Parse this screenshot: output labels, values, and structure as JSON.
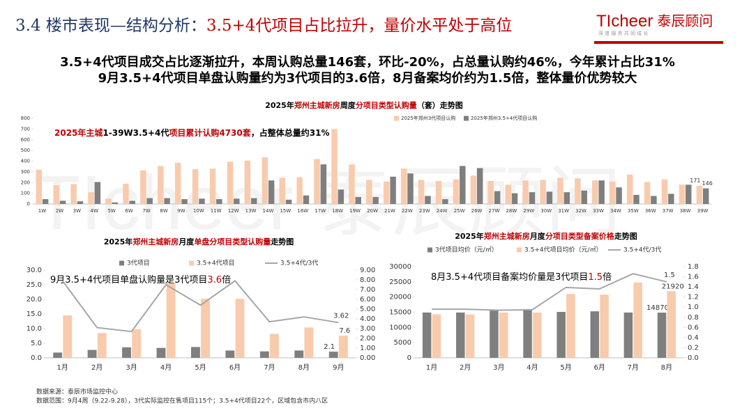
{
  "header": {
    "title": [
      {
        "text": "3.4 楼市表现—结构分析：",
        "color": "#1f3864"
      },
      {
        "text": "3.5+4代项目占比拉升，量价水平处于高位",
        "color": "#c00000"
      }
    ],
    "logo": "TIcheer",
    "logo_cn": "泰辰顾问",
    "slogan": "深 度 服 务 共 同 成 长"
  },
  "headline": [
    "3.5+4代项目成交占比逐渐拉升，本周认购总量146套，环比-20%，占总量认购约46%，今年累计占比31%",
    "9月3.5+4代项目单盘认购量约为3代项目的3.6倍，8月备案均价约为1.5倍，整体量价优势较大"
  ],
  "chart_data": [
    {
      "type": "bar",
      "title": [
        {
          "text": "2025年",
          "color": "#000000"
        },
        {
          "text": "郑州主城新房",
          "color": "#c00000"
        },
        {
          "text": "周度",
          "color": "#000000"
        },
        {
          "text": "分项目类型认购量",
          "color": "#c00000"
        },
        {
          "text": "（套）走势图",
          "color": "#000000"
        }
      ],
      "annotation": [
        {
          "text": "2025年主城",
          "color": "#c00000"
        },
        {
          "text": "1-39W3.5+4代",
          "color": "#000000"
        },
        {
          "text": "项目累计认购4730套",
          "color": "#c00000"
        },
        {
          "text": "，占整体总量约31%",
          "color": "#000000"
        }
      ],
      "categories": [
        "1W",
        "2W",
        "3W",
        "4W",
        "5W",
        "6W",
        "7W",
        "8W",
        "9W",
        "10W",
        "11W",
        "12W",
        "13W",
        "14W",
        "15W",
        "16W",
        "17W",
        "18W",
        "19W",
        "20W",
        "21W",
        "22W",
        "23W",
        "24W",
        "25W",
        "26W",
        "27W",
        "28W",
        "29W",
        "30W",
        "31W",
        "32W",
        "33W",
        "34W",
        "35W",
        "36W",
        "37W",
        "38W",
        "39W"
      ],
      "series": [
        {
          "name": "2025年郑州3代项目认购",
          "color": "#f8cbad",
          "type": "bar",
          "values": [
            320,
            175,
            185,
            110,
            50,
            190,
            315,
            355,
            385,
            325,
            330,
            395,
            405,
            435,
            245,
            250,
            420,
            700,
            370,
            225,
            210,
            330,
            225,
            215,
            230,
            265,
            215,
            180,
            220,
            225,
            245,
            240,
            220,
            210,
            275,
            205,
            230,
            180,
            171
          ],
          "value_labels": [
            null,
            null,
            null,
            null,
            null,
            null,
            null,
            null,
            null,
            null,
            null,
            null,
            null,
            null,
            null,
            null,
            null,
            null,
            null,
            null,
            null,
            null,
            null,
            null,
            null,
            null,
            null,
            null,
            null,
            null,
            null,
            null,
            null,
            null,
            null,
            null,
            null,
            null,
            "171"
          ]
        },
        {
          "name": "2025年郑州3.5+4代项目认购",
          "color": "#7f7f7f",
          "type": "bar",
          "values": [
            45,
            30,
            25,
            205,
            15,
            30,
            55,
            55,
            45,
            50,
            45,
            50,
            55,
            220,
            40,
            80,
            370,
            135,
            65,
            65,
            255,
            285,
            75,
            45,
            355,
            335,
            120,
            100,
            110,
            115,
            110,
            125,
            220,
            155,
            85,
            75,
            95,
            180,
            146
          ],
          "value_labels": [
            null,
            null,
            null,
            null,
            null,
            null,
            null,
            null,
            null,
            null,
            null,
            null,
            null,
            null,
            null,
            null,
            null,
            null,
            null,
            null,
            null,
            null,
            null,
            null,
            null,
            null,
            null,
            null,
            null,
            null,
            null,
            null,
            null,
            null,
            null,
            null,
            null,
            null,
            "146"
          ]
        }
      ],
      "ylim": [
        0,
        800
      ],
      "yticks": [
        0,
        100,
        200,
        300,
        400,
        500,
        600,
        700,
        800
      ],
      "grid": false
    },
    {
      "type": "combo",
      "title": [
        {
          "text": "2025年",
          "color": "#000000"
        },
        {
          "text": "郑州主城新房",
          "color": "#c00000"
        },
        {
          "text": "月度",
          "color": "#000000"
        },
        {
          "text": "单盘分项目类型认购量",
          "color": "#c00000"
        },
        {
          "text": "走势图",
          "color": "#000000"
        }
      ],
      "annotation": [
        {
          "text": "9月3.5+4代项目单盘认购量是3代项目",
          "color": "#000000"
        },
        {
          "text": "3.6",
          "color": "#c00000"
        },
        {
          "text": "倍",
          "color": "#000000"
        }
      ],
      "categories": [
        "1月",
        "2月",
        "3月",
        "4月",
        "5月",
        "6月",
        "7月",
        "8月",
        "9月"
      ],
      "series": [
        {
          "name": "3代项目",
          "color": "#7f7f7f",
          "type": "bar",
          "values": [
            1.8,
            2.7,
            3.6,
            3.4,
            3.7,
            2.5,
            2.2,
            2.5,
            2.1
          ],
          "value_labels": [
            null,
            null,
            null,
            null,
            null,
            null,
            null,
            null,
            "2.1"
          ]
        },
        {
          "name": "3.5+4代项目",
          "color": "#f8cbad",
          "type": "bar",
          "values": [
            14.5,
            8.5,
            9.8,
            25.5,
            20.2,
            20.2,
            8.2,
            10.4,
            7.6
          ],
          "value_labels": [
            null,
            null,
            null,
            null,
            null,
            null,
            null,
            null,
            "7.6"
          ]
        },
        {
          "name": "3.5+4代/3代",
          "color": "#a6a6a6",
          "type": "line",
          "axis": "y2",
          "values": [
            7.9,
            3.1,
            2.7,
            7.5,
            5.4,
            7.9,
            3.7,
            4.2,
            3.62
          ],
          "value_labels": [
            null,
            null,
            null,
            null,
            null,
            null,
            null,
            null,
            "3.62"
          ]
        }
      ],
      "ylim": [
        0,
        30
      ],
      "yticks": [
        {
          "value": 0,
          "label": "0.0"
        },
        {
          "value": 5,
          "label": "5.0"
        },
        {
          "value": 10,
          "label": "10.0"
        },
        {
          "value": 15,
          "label": "15.0"
        },
        {
          "value": 20,
          "label": "20.0"
        },
        {
          "value": 25,
          "label": "25.0"
        },
        {
          "value": 30,
          "label": "30.0"
        }
      ],
      "y2lim": [
        0,
        9
      ],
      "y2ticks": [
        {
          "value": 0,
          "label": "0.00"
        },
        {
          "value": 1,
          "label": "1.00"
        },
        {
          "value": 2,
          "label": "2.00"
        },
        {
          "value": 3,
          "label": "3.00"
        },
        {
          "value": 4,
          "label": "4.00"
        },
        {
          "value": 5,
          "label": "5.00"
        },
        {
          "value": 6,
          "label": "6.00"
        },
        {
          "value": 7,
          "label": "7.00"
        },
        {
          "value": 8,
          "label": "8.00"
        },
        {
          "value": 9,
          "label": "9.00"
        }
      ],
      "grid": false
    },
    {
      "type": "combo",
      "title": [
        {
          "text": "2025年",
          "color": "#000000"
        },
        {
          "text": "郑州主城新房",
          "color": "#c00000"
        },
        {
          "text": "月度",
          "color": "#000000"
        },
        {
          "text": "分项目类型备案价格",
          "color": "#c00000"
        },
        {
          "text": "走势图",
          "color": "#000000"
        }
      ],
      "annotation": [
        {
          "text": "8月3.5+4代项目备案均价量是3代项目",
          "color": "#000000"
        },
        {
          "text": "1.5",
          "color": "#c00000"
        },
        {
          "text": "倍",
          "color": "#000000"
        }
      ],
      "categories": [
        "1月",
        "2月",
        "3月",
        "4月",
        "5月",
        "6月",
        "7月",
        "8月"
      ],
      "series": [
        {
          "name": "3代项目均价（元/㎡）",
          "color": "#7f7f7f",
          "type": "bar",
          "values": [
            14900,
            14900,
            15900,
            15700,
            15100,
            15300,
            14900,
            14870
          ],
          "value_labels": [
            null,
            null,
            null,
            null,
            null,
            null,
            null,
            "14870"
          ]
        },
        {
          "name": "3.5+4代项目均价（元/㎡）",
          "color": "#f8cbad",
          "type": "bar",
          "values": [
            14300,
            14300,
            14900,
            14900,
            21000,
            20800,
            24800,
            21920
          ],
          "value_labels": [
            null,
            null,
            null,
            null,
            null,
            null,
            null,
            "21920"
          ]
        },
        {
          "name": "3.5+4代/3代",
          "color": "#a6a6a6",
          "type": "line",
          "axis": "y2",
          "values": [
            0.96,
            0.96,
            0.94,
            0.95,
            1.39,
            1.36,
            1.66,
            1.5
          ],
          "value_labels": [
            null,
            null,
            null,
            null,
            null,
            null,
            null,
            "1.5"
          ]
        }
      ],
      "ylim": [
        0,
        30000
      ],
      "yticks": [
        0,
        5000,
        10000,
        15000,
        20000,
        25000,
        30000
      ],
      "y2lim": [
        0,
        1.8
      ],
      "y2ticks": [
        {
          "value": 0,
          "label": "0.0"
        },
        0.2,
        0.4,
        0.6,
        0.8,
        {
          "value": 1,
          "label": "1.0"
        },
        1.2,
        1.4,
        1.6,
        1.8
      ],
      "grid": false
    }
  ],
  "footer": [
    "数据来源：泰辰市场监控中心",
    "数据范围：9月4周（9.22-9.28），3代实际监控在售项目115个；3.5+4代项目22个，区域包含市内八区"
  ]
}
